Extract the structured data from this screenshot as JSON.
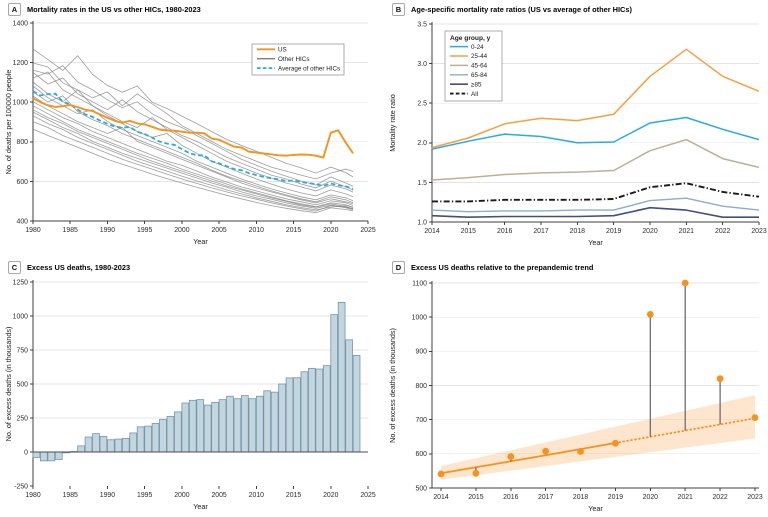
{
  "chart_data": [
    {
      "id": "A",
      "type": "line",
      "panel_label": "A",
      "title": "Mortality rates in the US vs other HICs, 1980-2023",
      "xlabel": "Year",
      "ylabel": "No. of deaths per 100000 people",
      "xlim": [
        1980,
        2025
      ],
      "ylim": [
        400,
        1400
      ],
      "xticks": [
        1980,
        1985,
        1990,
        1995,
        2000,
        2005,
        2010,
        2015,
        2020,
        2025
      ],
      "xtick_labels": [
        "1980",
        "1985",
        "1990",
        "1995",
        "2000",
        "2005",
        "2010",
        "2015",
        "2020",
        "2025"
      ],
      "yticks": [
        400,
        600,
        800,
        1000,
        1200,
        1400
      ],
      "ytick_labels": [
        "400",
        "600",
        "800",
        "1000",
        "1200",
        "1400"
      ],
      "gridlines": [
        600,
        800,
        1000,
        1200,
        1400
      ],
      "legend_position": "upper right",
      "x_range": [
        1980,
        2023
      ],
      "series": [
        {
          "name": "US",
          "color": "#F6921E",
          "lw": 1.9,
          "z": 3,
          "values": [
            1020,
            1000,
            985,
            976,
            980,
            986,
            975,
            962,
            955,
            938,
            921,
            906,
            896,
            906,
            893,
            888,
            876,
            862,
            857,
            856,
            851,
            846,
            846,
            843,
            816,
            810,
            793,
            776,
            771,
            750,
            746,
            741,
            737,
            732,
            730,
            734,
            736,
            735,
            730,
            720,
            846,
            858,
            796,
            742
          ]
        },
        {
          "name": "Other HICs",
          "color": "#7D7D7D",
          "lw": 0.8,
          "z": 1,
          "bundle": true,
          "x": [
            1980,
            1982,
            1984,
            1986,
            1988,
            1990,
            1992,
            1994,
            1996,
            1998,
            2000,
            2002,
            2004,
            2006,
            2008,
            2010,
            2012,
            2014,
            2016,
            2018,
            2020,
            2022,
            2023
          ],
          "lines": [
            [
              1268,
              1215,
              1160,
              1235,
              1140,
              1085,
              1050,
              1082,
              1000,
              968,
              930,
              892,
              852,
              812,
              782,
              752,
              722,
              692,
              668,
              642,
              672,
              645,
              622
            ],
            [
              1198,
              1178,
              1098,
              1062,
              1022,
              1052,
              982,
              1042,
              992,
              942,
              882,
              842,
              802,
              762,
              732,
              702,
              672,
              652,
              632,
              612,
              642,
              662,
              650
            ],
            [
              1162,
              1142,
              1185,
              1102,
              1062,
              1012,
              972,
              1002,
              942,
              902,
              872,
              832,
              792,
              752,
              712,
              682,
              652,
              627,
              602,
              582,
              622,
              592,
              576
            ],
            [
              1150,
              1092,
              1122,
              1042,
              1002,
              962,
              1012,
              952,
              912,
              872,
              832,
              802,
              762,
              722,
              692,
              662,
              632,
              612,
              587,
              567,
              602,
              572,
              556
            ],
            [
              1122,
              1152,
              1062,
              1022,
              982,
              942,
              902,
              872,
              922,
              862,
              822,
              782,
              742,
              702,
              672,
              642,
              617,
              592,
              572,
              552,
              582,
              562,
              546
            ],
            [
              1102,
              1042,
              1002,
              1062,
              982,
              932,
              892,
              852,
              822,
              842,
              782,
              742,
              702,
              672,
              642,
              612,
              587,
              562,
              542,
              527,
              557,
              537,
              522
            ],
            [
              1082,
              1022,
              982,
              942,
              962,
              902,
              862,
              832,
              802,
              772,
              742,
              702,
              672,
              642,
              612,
              587,
              562,
              542,
              522,
              507,
              532,
              517,
              502
            ],
            [
              1052,
              1002,
              1032,
              952,
              912,
              882,
              842,
              812,
              782,
              752,
              722,
              692,
              657,
              627,
              602,
              577,
              552,
              532,
              512,
              497,
              522,
              507,
              492
            ],
            [
              1032,
              982,
              942,
              902,
              872,
              842,
              872,
              802,
              772,
              742,
              712,
              682,
              652,
              622,
              592,
              567,
              547,
              527,
              507,
              492,
              512,
              497,
              487
            ],
            [
              1002,
              962,
              922,
              892,
              852,
              822,
              792,
              762,
              732,
              702,
              682,
              652,
              622,
              597,
              572,
              552,
              532,
              512,
              497,
              482,
              502,
              492,
              478
            ],
            [
              982,
              942,
              902,
              862,
              832,
              802,
              772,
              742,
              717,
              692,
              662,
              637,
              612,
              587,
              562,
              542,
              522,
              502,
              487,
              472,
              492,
              482,
              468
            ],
            [
              962,
              922,
              892,
              852,
              822,
              792,
              762,
              732,
              702,
              677,
              652,
              627,
              602,
              577,
              557,
              537,
              517,
              500,
              482,
              470,
              487,
              472,
              462
            ],
            [
              950,
              912,
              872,
              842,
              802,
              772,
              742,
              717,
              692,
              667,
              642,
              617,
              592,
              570,
              547,
              527,
              510,
              492,
              477,
              464,
              480,
              467,
              457
            ],
            [
              932,
              892,
              862,
              822,
              792,
              762,
              732,
              702,
              677,
              652,
              627,
              602,
              580,
              557,
              537,
              517,
              500,
              482,
              468,
              456,
              470,
              478,
              470
            ],
            [
              902,
              872,
              832,
              802,
              772,
              742,
              712,
              687,
              662,
              637,
              612,
              590,
              567,
              547,
              527,
              510,
              492,
              476,
              462,
              450,
              478,
              470,
              462
            ],
            [
              864,
              832,
              802,
              772,
              742,
              712,
              687,
              662,
              637,
              614,
              592,
              570,
              550,
              530,
              512,
              494,
              478,
              464,
              452,
              442,
              466,
              458,
              452
            ]
          ]
        },
        {
          "name": "Average of other HICs",
          "color": "#29ABE2",
          "lw": 1.8,
          "dash": "4.5 2.8",
          "z": 2,
          "values": [
            1056,
            1034,
            1041,
            1043,
            1002,
            989,
            962,
            939,
            926,
            907,
            891,
            877,
            871,
            875,
            851,
            839,
            821,
            801,
            791,
            785,
            763,
            743,
            732,
            732,
            701,
            691,
            677,
            662,
            656,
            642,
            632,
            622,
            616,
            610,
            602,
            605,
            597,
            592,
            586,
            577,
            590,
            580,
            575,
            562
          ]
        }
      ]
    },
    {
      "id": "B",
      "type": "line",
      "panel_label": "B",
      "title": "Age-specific mortality rate ratios (US vs average of other HICs)",
      "xlabel": "Year",
      "ylabel": "Mortality rate ratio",
      "xlim": [
        2014,
        2023
      ],
      "ylim": [
        1.0,
        3.5
      ],
      "xticks": [
        2014,
        2015,
        2016,
        2017,
        2018,
        2019,
        2020,
        2021,
        2022,
        2023
      ],
      "xtick_labels": [
        "2014",
        "2015",
        "2016",
        "2017",
        "2018",
        "2019",
        "2020",
        "2021",
        "2022",
        "2023"
      ],
      "yticks": [
        1.0,
        1.5,
        2.0,
        2.5,
        3.0,
        3.5
      ],
      "ytick_labels": [
        "1.0",
        "1.5",
        "2.0",
        "2.5",
        "3.0",
        "3.5"
      ],
      "gridlines": [
        1.5,
        2.0,
        2.5,
        3.0,
        3.5
      ],
      "legend_title": "Age group, y",
      "legend_position": "upper left",
      "x_range": [
        2014,
        2023
      ],
      "series": [
        {
          "name": "0-24",
          "color": "#29ABE2",
          "lw": 1.5,
          "z": 2,
          "values": [
            1.92,
            2.02,
            2.11,
            2.08,
            2.0,
            2.01,
            2.25,
            2.32,
            2.17,
            2.04
          ]
        },
        {
          "name": "25-44",
          "color": "#F6A03E",
          "lw": 1.5,
          "z": 2,
          "values": [
            1.94,
            2.06,
            2.24,
            2.31,
            2.28,
            2.36,
            2.84,
            3.18,
            2.84,
            2.65
          ]
        },
        {
          "name": "45-64",
          "color": "#BEB098",
          "lw": 1.5,
          "z": 2,
          "values": [
            1.53,
            1.56,
            1.6,
            1.62,
            1.63,
            1.65,
            1.9,
            2.04,
            1.8,
            1.69
          ]
        },
        {
          "name": "65-84",
          "color": "#8FADC6",
          "lw": 1.4,
          "z": 2,
          "values": [
            1.15,
            1.13,
            1.14,
            1.14,
            1.15,
            1.15,
            1.27,
            1.3,
            1.2,
            1.15
          ]
        },
        {
          "name": "≥85",
          "color": "#444F7C",
          "lw": 1.6,
          "z": 2,
          "values": [
            1.08,
            1.06,
            1.07,
            1.07,
            1.07,
            1.08,
            1.18,
            1.15,
            1.06,
            1.06
          ]
        },
        {
          "name": "All",
          "color": "#1A1A1A",
          "lw": 1.9,
          "dash": "6 2.2 1.3 2.2",
          "z": 3,
          "values": [
            1.26,
            1.26,
            1.28,
            1.28,
            1.28,
            1.29,
            1.44,
            1.49,
            1.38,
            1.32
          ]
        }
      ]
    },
    {
      "id": "C",
      "type": "bar",
      "panel_label": "C",
      "title": "Excess US deaths, 1980-2023",
      "xlabel": "Year",
      "ylabel": "No. of excess deaths (in thousands)",
      "xlim": [
        1980,
        2025
      ],
      "ylim": [
        -250,
        1250
      ],
      "xticks": [
        1980,
        1985,
        1990,
        1995,
        2000,
        2005,
        2010,
        2015,
        2020,
        2025
      ],
      "xtick_labels": [
        "1980",
        "1985",
        "1990",
        "1995",
        "2000",
        "2005",
        "2010",
        "2015",
        "2020",
        "2025"
      ],
      "yticks": [
        -250,
        0,
        250,
        500,
        750,
        1000,
        1250
      ],
      "ytick_labels": [
        "-250",
        "0",
        "250",
        "500",
        "750",
        "1000",
        "1250"
      ],
      "gridlines": [
        250,
        500,
        750,
        1000,
        1250
      ],
      "baseline": 0,
      "bar_fill": "#C3D5DE",
      "bar_stroke": "#7397A9",
      "year_start": 1980,
      "values": [
        -40,
        -65,
        -65,
        -55,
        -6,
        4,
        45,
        110,
        135,
        115,
        90,
        95,
        100,
        140,
        185,
        190,
        210,
        240,
        262,
        295,
        360,
        380,
        385,
        345,
        365,
        385,
        410,
        392,
        415,
        392,
        410,
        450,
        440,
        500,
        545,
        546,
        590,
        615,
        610,
        635,
        1010,
        1100,
        825,
        710
      ]
    },
    {
      "id": "D",
      "type": "scatter-trend",
      "panel_label": "D",
      "title": "Excess US deaths relative to the prepandemic trend",
      "xlabel": "Year",
      "ylabel": "No. of excess deaths (in thousands)",
      "xlim": [
        2014,
        2023
      ],
      "ylim": [
        500,
        1100
      ],
      "xticks": [
        2014,
        2015,
        2016,
        2017,
        2018,
        2019,
        2020,
        2021,
        2022,
        2023
      ],
      "xtick_labels": [
        "2014",
        "2015",
        "2016",
        "2017",
        "2018",
        "2019",
        "2020",
        "2021",
        "2022",
        "2023"
      ],
      "yticks": [
        500,
        600,
        700,
        800,
        900,
        1000,
        1100
      ],
      "ytick_labels": [
        "500",
        "600",
        "700",
        "800",
        "900",
        "1000",
        "1100"
      ],
      "gridlines": [
        600,
        700,
        800,
        900,
        1000,
        1100
      ],
      "x_range": [
        2014,
        2023
      ],
      "observed": [
        541,
        543,
        592,
        608,
        607,
        631,
        1008,
        1100,
        820,
        706
      ],
      "trend": [
        543,
        561,
        578,
        596,
        614,
        632,
        650,
        668,
        686,
        704
      ],
      "trend_solid_end": 2019,
      "band": {
        "x": [
          2014,
          2023
        ],
        "lower": [
          524,
          645
        ],
        "upper": [
          564,
          772
        ]
      },
      "point_color": "#F6921E",
      "trend_color": "#F6921E",
      "band_color": "#F9A64A",
      "stem_color": "#6E6E6E"
    }
  ]
}
